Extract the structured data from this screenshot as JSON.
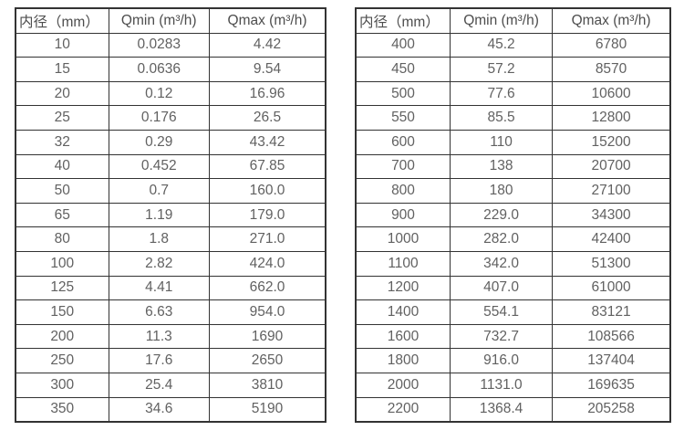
{
  "colors": {
    "border": "#333333",
    "header_text": "#4d4d4d",
    "cell_text": "#616161",
    "background": "#ffffff"
  },
  "tables": [
    {
      "name": "flow-rate-table-small-diameters",
      "headers": [
        "内径（mm）",
        "Qmin (m³/h)",
        "Qmax (m³/h)"
      ],
      "rows": [
        [
          "10",
          "0.0283",
          "4.42"
        ],
        [
          "15",
          "0.0636",
          "9.54"
        ],
        [
          "20",
          "0.12",
          "16.96"
        ],
        [
          "25",
          "0.176",
          "26.5"
        ],
        [
          "32",
          "0.29",
          "43.42"
        ],
        [
          "40",
          "0.452",
          "67.85"
        ],
        [
          "50",
          "0.7",
          "160.0"
        ],
        [
          "65",
          "1.19",
          "179.0"
        ],
        [
          "80",
          "1.8",
          "271.0"
        ],
        [
          "100",
          "2.82",
          "424.0"
        ],
        [
          "125",
          "4.41",
          "662.0"
        ],
        [
          "150",
          "6.63",
          "954.0"
        ],
        [
          "200",
          "11.3",
          "1690"
        ],
        [
          "250",
          "17.6",
          "2650"
        ],
        [
          "300",
          "25.4",
          "3810"
        ],
        [
          "350",
          "34.6",
          "5190"
        ]
      ]
    },
    {
      "name": "flow-rate-table-large-diameters",
      "headers": [
        "内径（mm）",
        "Qmin (m³/h)",
        "Qmax (m³/h)"
      ],
      "rows": [
        [
          "400",
          "45.2",
          "6780"
        ],
        [
          "450",
          "57.2",
          "8570"
        ],
        [
          "500",
          "77.6",
          "10600"
        ],
        [
          "550",
          "85.5",
          "12800"
        ],
        [
          "600",
          "110",
          "15200"
        ],
        [
          "700",
          "138",
          "20700"
        ],
        [
          "800",
          "180",
          "27100"
        ],
        [
          "900",
          "229.0",
          "34300"
        ],
        [
          "1000",
          "282.0",
          "42400"
        ],
        [
          "1100",
          "342.0",
          "51300"
        ],
        [
          "1200",
          "407.0",
          "61000"
        ],
        [
          "1400",
          "554.1",
          "83121"
        ],
        [
          "1600",
          "732.7",
          "108566"
        ],
        [
          "1800",
          "916.0",
          "137404"
        ],
        [
          "2000",
          "1131.0",
          "169635"
        ],
        [
          "2200",
          "1368.4",
          "205258"
        ]
      ]
    }
  ]
}
